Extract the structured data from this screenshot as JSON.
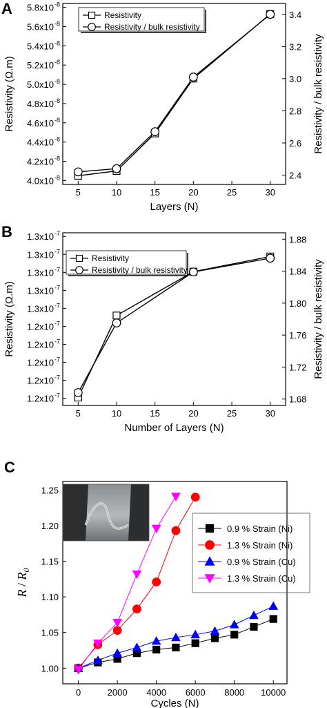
{
  "chart_data": [
    {
      "panel": "A",
      "type": "line",
      "title": "",
      "xlabel": "Layers (N)",
      "ylabel": "Resistivity (Ω.m)",
      "ylabel_right": "Resistivity / bulk resistivity",
      "xlim": [
        3,
        32
      ],
      "ylim": [
        3.96e-08,
        5.84e-08
      ],
      "y2lim": [
        2.342,
        3.468
      ],
      "xticks": [
        5,
        10,
        15,
        20,
        25,
        30
      ],
      "xtick_labels": [
        "5",
        "10",
        "15",
        "20",
        "25",
        "30"
      ],
      "yticks": [
        4e-08,
        4.2e-08,
        4.4e-08,
        4.6e-08,
        4.8e-08,
        5e-08,
        5.2e-08,
        5.4e-08,
        5.6e-08,
        5.8e-08
      ],
      "ytick_mantissa": [
        "4.0x10",
        "4.2x10",
        "4.4x10",
        "4.6x10",
        "4.8x10",
        "5.0x10",
        "5.2x10",
        "5.4x10",
        "5.6x10",
        "5.8x10"
      ],
      "ytick_exp": "-8",
      "y2ticks": [
        2.4,
        2.6,
        2.8,
        3.0,
        3.2,
        3.4
      ],
      "y2tick_labels": [
        "2.4",
        "2.6",
        "2.8",
        "3.0",
        "3.2",
        "3.4"
      ],
      "legend_position": "top-left",
      "series": [
        {
          "name": "Resistivity",
          "marker": "square",
          "axis": "left",
          "x": [
            5,
            10,
            15,
            20,
            30
          ],
          "values": [
            4.05e-08,
            4.1e-08,
            4.49e-08,
            5.06e-08,
            5.73e-08
          ]
        },
        {
          "name": "Resistivity / bulk resistivity",
          "marker": "circle",
          "axis": "right",
          "x": [
            5,
            10,
            15,
            20,
            30
          ],
          "values": [
            2.42,
            2.44,
            2.67,
            3.01,
            3.4
          ]
        }
      ]
    },
    {
      "panel": "B",
      "type": "line",
      "title": "",
      "xlabel": "Number of Layers (N)",
      "ylabel": "Resistivity (Ω.m)",
      "ylabel_right": "Resistivity / bulk resistivity",
      "xlim": [
        3,
        32
      ],
      "ylim": [
        1.195,
        1.315
      ],
      "y2lim": [
        1.672,
        1.888
      ],
      "xticks": [
        5,
        10,
        15,
        20,
        25,
        30
      ],
      "xtick_labels": [
        "5",
        "10",
        "15",
        "20",
        "25",
        "30"
      ],
      "yticks": [
        1.2,
        1.2125,
        1.225,
        1.2375,
        1.25,
        1.2625,
        1.275,
        1.2875,
        1.3,
        1.3125
      ],
      "ytick_mantissa": [
        "1.2x10",
        "1.2x10",
        "1.2x10",
        "1.2x10",
        "1.2x10",
        "1.3x10",
        "1.3x10",
        "1.3x10",
        "1.3x10",
        "1.3x10"
      ],
      "ytick_exp": "-7",
      "y2ticks": [
        1.68,
        1.72,
        1.76,
        1.8,
        1.84,
        1.88
      ],
      "y2tick_labels": [
        "1.68",
        "1.72",
        "1.76",
        "1.80",
        "1.84",
        "1.88"
      ],
      "legend_position": "top-left",
      "series": [
        {
          "name": "Resistivity",
          "marker": "square",
          "axis": "left",
          "x": [
            5,
            10,
            20,
            30
          ],
          "values": [
            1.2005,
            1.2575,
            1.288,
            1.2985
          ]
        },
        {
          "name": "Resistivity / bulk resistivity",
          "marker": "circle",
          "axis": "right",
          "x": [
            5,
            10,
            20,
            30
          ],
          "values": [
            1.688,
            1.7752,
            1.839,
            1.8562
          ]
        }
      ]
    },
    {
      "panel": "C",
      "type": "line",
      "title": "",
      "xlabel": "Cycles (N)",
      "ylabel_main": "R",
      "ylabel_sep": " / ",
      "ylabel_sub_base": "R",
      "ylabel_sub": "0",
      "xlim": [
        -800,
        10700
      ],
      "ylim": [
        0.978,
        1.262
      ],
      "xticks": [
        0,
        2000,
        4000,
        6000,
        8000,
        10000
      ],
      "xtick_labels": [
        "0",
        "2000",
        "4000",
        "6000",
        "8000",
        "10000"
      ],
      "yticks": [
        1.0,
        1.05,
        1.1,
        1.15,
        1.2,
        1.25
      ],
      "ytick_labels": [
        "1.00",
        "1.05",
        "1.10",
        "1.15",
        "1.20",
        "1.25"
      ],
      "legend_position": "right",
      "inset": "photo",
      "series": [
        {
          "name": "0.9 % Strain (Ni)",
          "marker": "square",
          "color": "#000000",
          "x": [
            0,
            1000,
            2000,
            3000,
            4000,
            5000,
            6000,
            7000,
            8000,
            9000,
            10000
          ],
          "values": [
            1.0,
            1.008,
            1.013,
            1.021,
            1.026,
            1.029,
            1.035,
            1.042,
            1.047,
            1.058,
            1.069
          ]
        },
        {
          "name": "1.3 % Strain (Ni)",
          "marker": "circle",
          "color": "#ff0000",
          "x": [
            0,
            1000,
            2000,
            3000,
            4000,
            5000,
            6000
          ],
          "values": [
            1.0,
            1.033,
            1.053,
            1.083,
            1.121,
            1.193,
            1.24
          ]
        },
        {
          "name": "0.9 % Strain (Cu)",
          "marker": "triangle-up",
          "color": "#0000ff",
          "x": [
            0,
            1000,
            2000,
            3000,
            4000,
            5000,
            6000,
            7000,
            8000,
            9000,
            10000
          ],
          "values": [
            1.0,
            1.011,
            1.021,
            1.029,
            1.038,
            1.043,
            1.047,
            1.052,
            1.061,
            1.074,
            1.087
          ]
        },
        {
          "name": "1.3 % Strain (Cu)",
          "marker": "triangle-down",
          "color": "#ff00ff",
          "x": [
            0,
            1000,
            2000,
            3000,
            4000,
            5000
          ],
          "values": [
            0.998,
            1.035,
            1.064,
            1.132,
            1.196,
            1.241
          ]
        }
      ]
    }
  ]
}
